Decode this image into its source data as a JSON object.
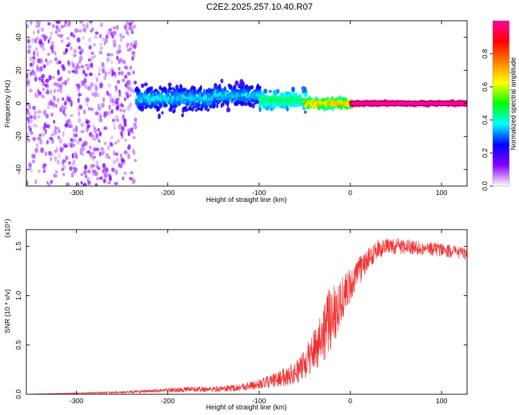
{
  "title": "C2E2.2025.257.10.40.R07",
  "chart_data": [
    {
      "type": "heatmap",
      "title": "",
      "xlabel": "Height of straight line (km)",
      "ylabel": "Frequency (Hz)",
      "xlim": [
        -355,
        128
      ],
      "ylim": [
        -50,
        50
      ],
      "xticks": [
        -300,
        -200,
        -100,
        0,
        100
      ],
      "xtick_labels": [
        "-300",
        "-200",
        "-100",
        "0",
        "100"
      ],
      "yticks": [
        -40,
        -20,
        0,
        20,
        40
      ],
      "ytick_labels": [
        "-40",
        "-20",
        "0",
        "20",
        "40"
      ],
      "colorbar": {
        "label": "Normalized spectral amplitude",
        "range": [
          0,
          1
        ],
        "ticks": [
          0.0,
          0.2,
          0.4,
          0.6,
          0.8
        ],
        "tick_labels": [
          "0.0",
          "0.2",
          "0.4",
          "0.6",
          "0.8"
        ],
        "colors": [
          "#ffffff",
          "#8a00ff",
          "#0000ff",
          "#00ffff",
          "#00ff00",
          "#ffff00",
          "#ff8000",
          "#ff0000",
          "#ff00a0"
        ]
      },
      "regions": [
        {
          "x": [
            -355,
            -235
          ],
          "freq_spread": 50,
          "amplitude": [
            0.05,
            0.15
          ],
          "description_level": "diffuse noise"
        },
        {
          "x": [
            -235,
            -150
          ],
          "freq_center": 3,
          "freq_spread": 8,
          "amplitude": [
            0.2,
            0.4
          ]
        },
        {
          "x": [
            -150,
            -100
          ],
          "freq_center": 5,
          "freq_spread": 7,
          "amplitude": [
            0.2,
            0.4
          ]
        },
        {
          "x": [
            -100,
            -50
          ],
          "freq_center": 2,
          "freq_spread": 6,
          "amplitude": [
            0.3,
            0.5
          ]
        },
        {
          "x": [
            -50,
            0
          ],
          "freq_center": 0,
          "freq_spread": 3,
          "amplitude": [
            0.4,
            0.8
          ]
        },
        {
          "x": [
            0,
            128
          ],
          "freq_center": 0,
          "freq_spread": 1,
          "amplitude": [
            0.95,
            1.0
          ]
        }
      ]
    },
    {
      "type": "line",
      "title": "",
      "xlabel": "Height of straight line (km)",
      "ylabel": "SNR (10 * v/v)",
      "y_multiplier_label": "(x10⁴)",
      "xlim": [
        -355,
        128
      ],
      "ylim": [
        0,
        1.67
      ],
      "xticks": [
        -300,
        -200,
        -100,
        0,
        100
      ],
      "xtick_labels": [
        "-300",
        "-200",
        "-100",
        "0",
        "100"
      ],
      "yticks": [
        0.0,
        0.5,
        1.0,
        1.5
      ],
      "ytick_labels": [
        "0.0",
        "0.5",
        "1.0",
        "1.5"
      ],
      "series": [
        {
          "color": "#ee3333",
          "x": [
            -355,
            -300,
            -250,
            -200,
            -170,
            -150,
            -120,
            -100,
            -80,
            -60,
            -50,
            -40,
            -30,
            -20,
            -10,
            0,
            10,
            20,
            30,
            40,
            60,
            80,
            100,
            128
          ],
          "y": [
            0.0,
            0.01,
            0.02,
            0.04,
            0.05,
            0.05,
            0.07,
            0.1,
            0.15,
            0.22,
            0.3,
            0.45,
            0.62,
            0.8,
            0.95,
            1.1,
            1.25,
            1.38,
            1.47,
            1.5,
            1.5,
            1.48,
            1.47,
            1.42
          ],
          "noise": [
            0.0,
            0.005,
            0.01,
            0.02,
            0.03,
            0.03,
            0.04,
            0.05,
            0.08,
            0.12,
            0.15,
            0.22,
            0.3,
            0.35,
            0.25,
            0.18,
            0.15,
            0.1,
            0.1,
            0.08,
            0.08,
            0.07,
            0.07,
            0.06
          ]
        }
      ]
    }
  ]
}
